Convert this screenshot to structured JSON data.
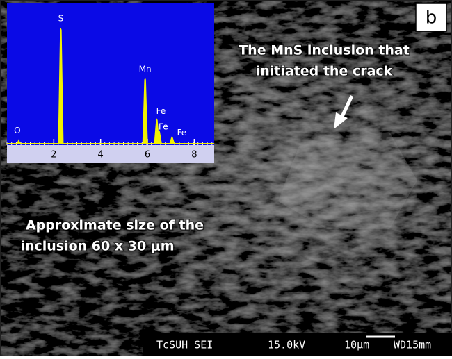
{
  "panel_label": "b",
  "annotations": {
    "inclusion": [
      "The MnS inclusion that",
      "initiated the crack"
    ],
    "size": [
      "Approximate size of the",
      "inclusion 60 x 30 μm"
    ]
  },
  "inset_spectrum": {
    "type": "spectrum",
    "xlim": [
      0,
      8.85
    ],
    "xticks": [
      2,
      4,
      6,
      8
    ],
    "peaks": [
      {
        "label": "O",
        "x": 0.5,
        "height": 4
      },
      {
        "label": "S",
        "x": 2.3,
        "height": 100
      },
      {
        "label": "Mn",
        "x": 5.9,
        "height": 57
      },
      {
        "label": "Fe",
        "x": 6.4,
        "height": 22
      },
      {
        "label": "Fe",
        "x": 6.5,
        "height": 12
      },
      {
        "label": "Fe",
        "x": 7.05,
        "height": 7
      }
    ],
    "color": "#f2f200",
    "background": "#0a0ae6"
  },
  "info_bar": [
    "TcSUH SEI",
    "15.0kV",
    "10μm",
    "WD15mm"
  ]
}
